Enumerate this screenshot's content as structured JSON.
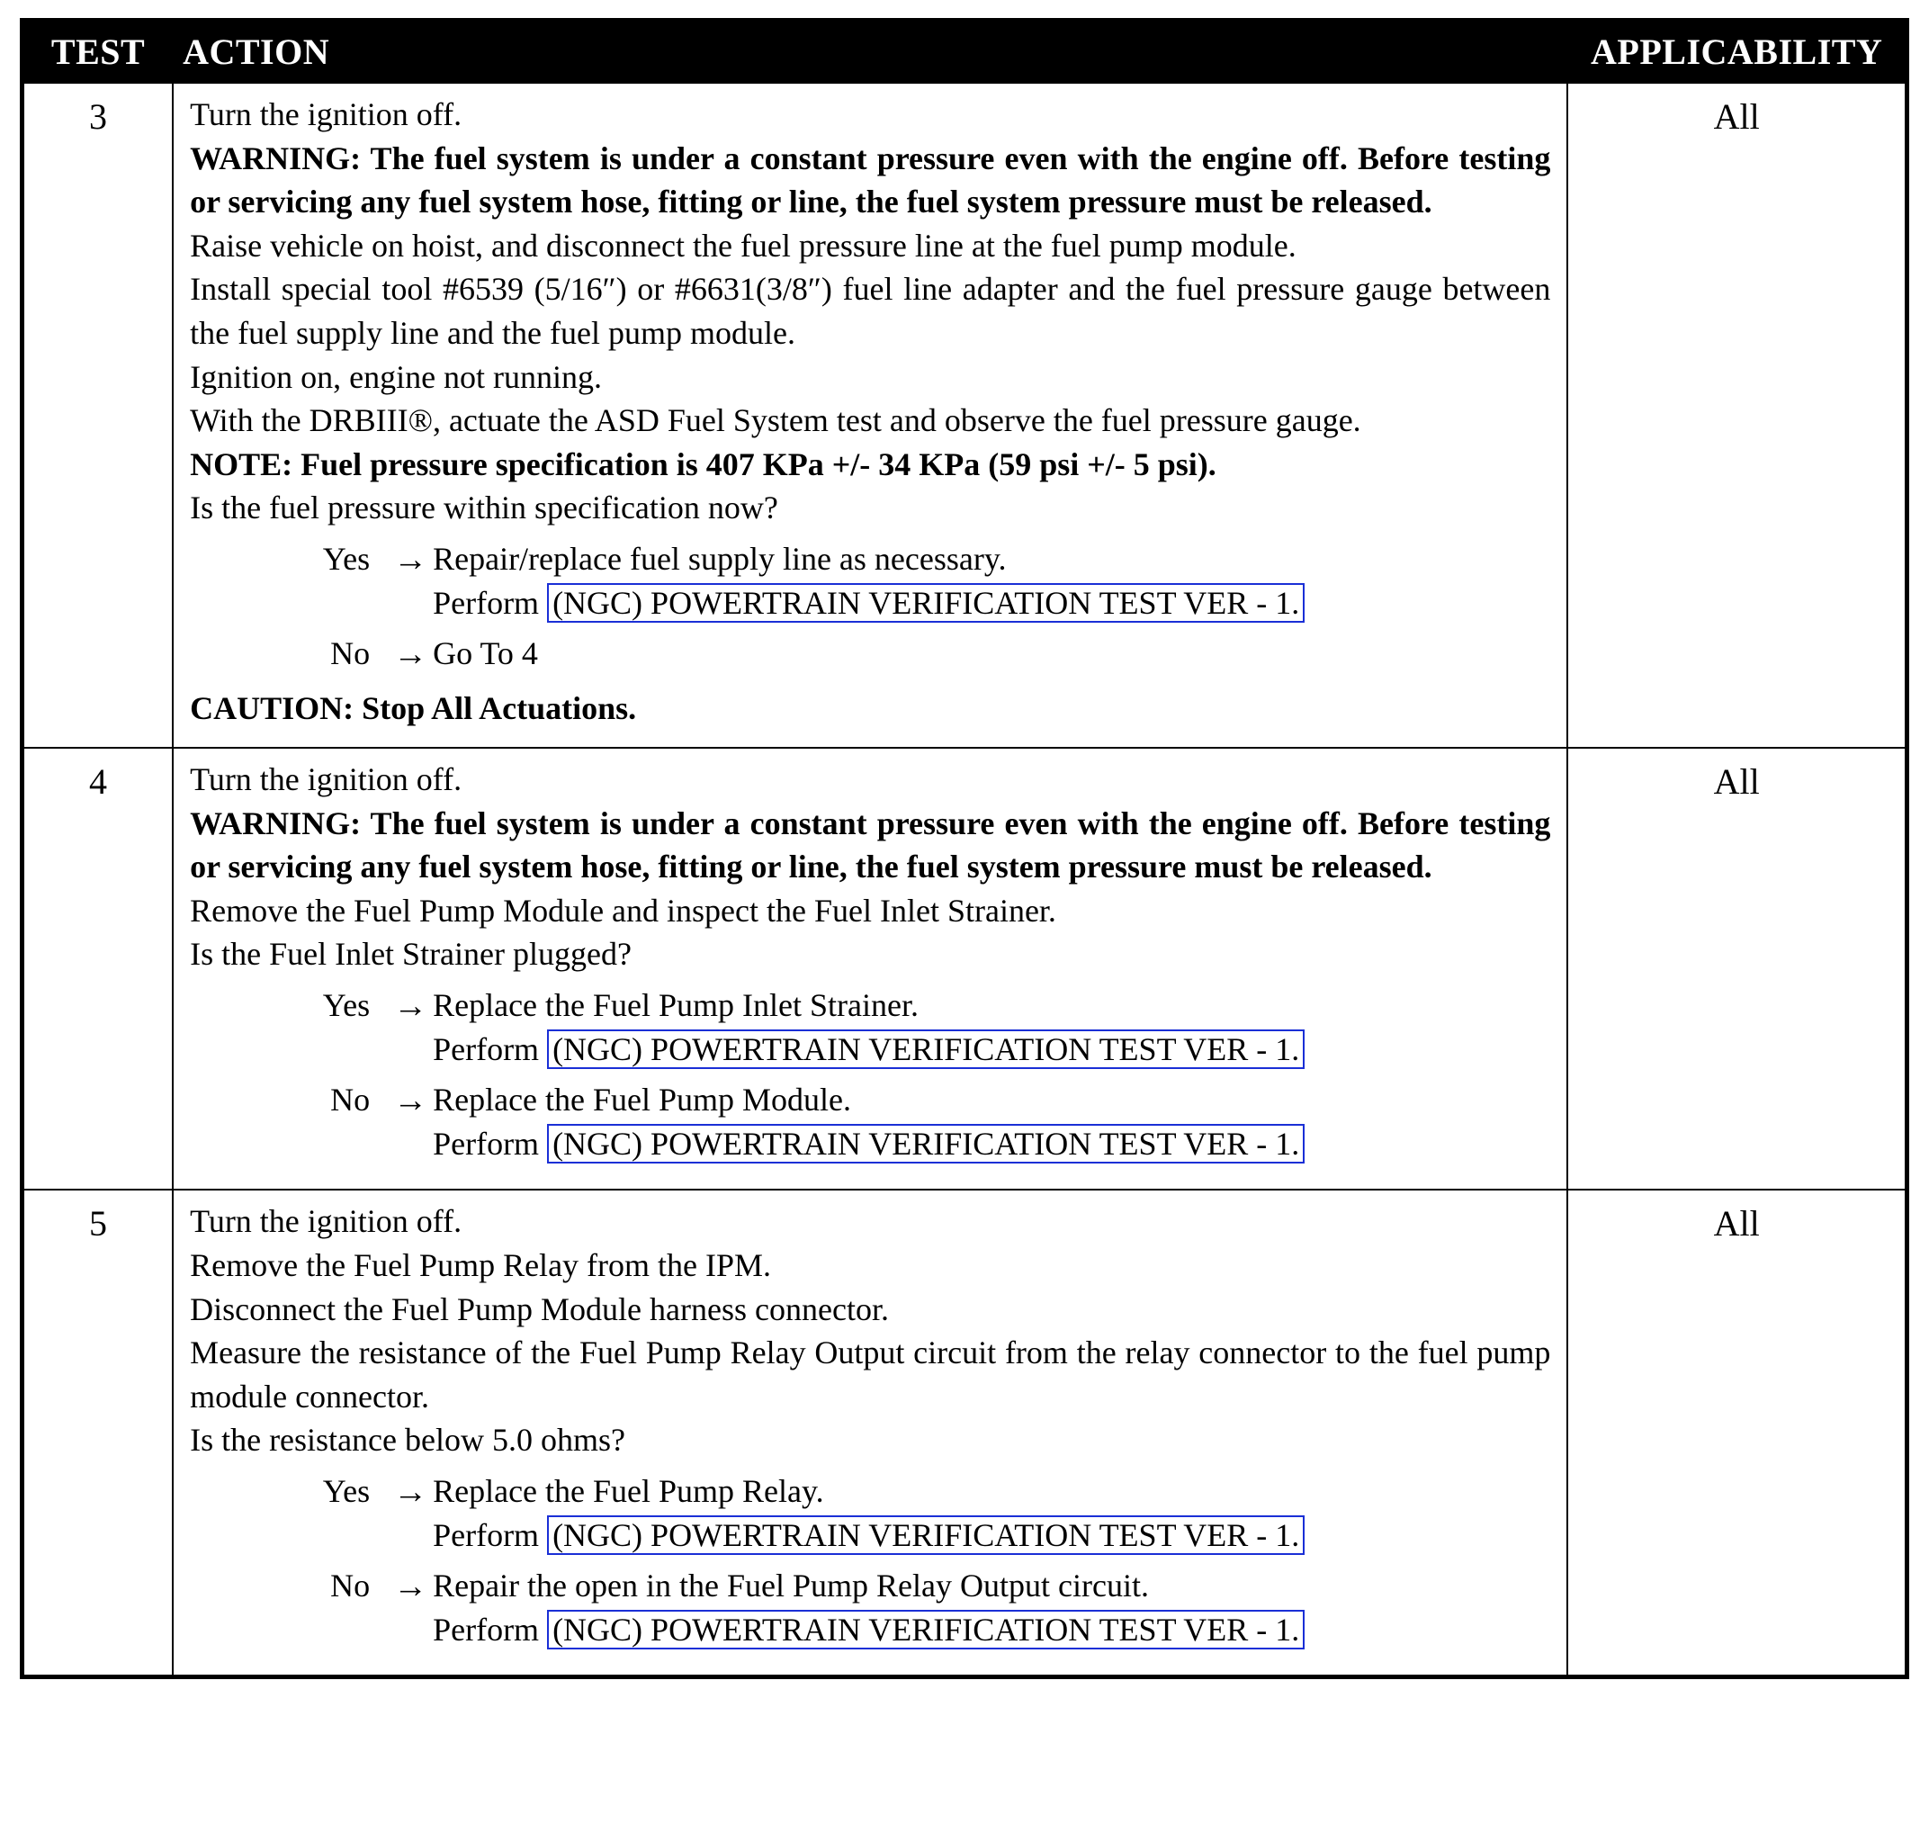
{
  "header": {
    "test": "TEST",
    "action": "ACTION",
    "applicability": "APPLICABILITY"
  },
  "link_text": "(NGC) POWERTRAIN VERIFICATION TEST VER - 1.",
  "link_color": "#1a2fd6",
  "rows": [
    {
      "test": "3",
      "applicability": "All",
      "lines": [
        {
          "t": "Turn the ignition off."
        },
        {
          "t": "WARNING: The fuel system is under a constant pressure even with the engine off. Before testing or servicing any fuel system hose, fitting or line, the fuel system pressure must be released.",
          "bold": true
        },
        {
          "t": "Raise vehicle on hoist, and disconnect the fuel pressure line at the fuel pump module."
        },
        {
          "t": "Install special tool #6539 (5/16″) or #6631(3/8″) fuel line adapter and the fuel pressure gauge between the fuel supply line and the fuel pump module."
        },
        {
          "t": "Ignition on, engine not running."
        },
        {
          "t": "With the DRBIII®, actuate the ASD Fuel System test and observe the fuel pressure gauge."
        },
        {
          "t": "NOTE: Fuel pressure specification is 407 KPa +/- 34 KPa (59 psi +/- 5 psi).",
          "bold": true
        },
        {
          "t": "Is the fuel pressure within specification now?"
        }
      ],
      "decisions": [
        {
          "label": "Yes",
          "body1": "Repair/replace fuel supply line as necessary.",
          "body2_prefix": "Perform ",
          "link": true
        },
        {
          "label": "No",
          "body1": "Go To   4"
        }
      ],
      "caution": "CAUTION: Stop All Actuations."
    },
    {
      "test": "4",
      "applicability": "All",
      "lines": [
        {
          "t": "Turn the ignition off."
        },
        {
          "t": "WARNING: The fuel system is under a constant pressure even with the engine off. Before testing or servicing any fuel system hose, fitting or line, the fuel system pressure must be released.",
          "bold": true
        },
        {
          "t": "Remove the Fuel Pump Module and inspect the Fuel Inlet Strainer."
        },
        {
          "t": "Is the Fuel Inlet Strainer plugged?"
        }
      ],
      "decisions": [
        {
          "label": "Yes",
          "body1": "Replace the Fuel Pump Inlet Strainer.",
          "body2_prefix": "Perform ",
          "link": true
        },
        {
          "label": "No",
          "body1": "Replace the Fuel Pump Module.",
          "body2_prefix": "Perform ",
          "link": true
        }
      ]
    },
    {
      "test": "5",
      "applicability": "All",
      "lines": [
        {
          "t": "Turn the ignition off."
        },
        {
          "t": "Remove the Fuel Pump Relay from the IPM."
        },
        {
          "t": "Disconnect the Fuel Pump Module harness connector."
        },
        {
          "t": "Measure the resistance of the Fuel Pump Relay Output circuit from the relay connector to the fuel pump module connector."
        },
        {
          "t": "Is the resistance below 5.0 ohms?"
        }
      ],
      "decisions": [
        {
          "label": "Yes",
          "body1": "Replace the Fuel Pump Relay.",
          "body2_prefix": "Perform ",
          "link": true
        },
        {
          "label": "No",
          "body1": "Repair the open in the Fuel Pump Relay Output circuit.",
          "body2_prefix": "Perform ",
          "link": true
        }
      ]
    }
  ]
}
